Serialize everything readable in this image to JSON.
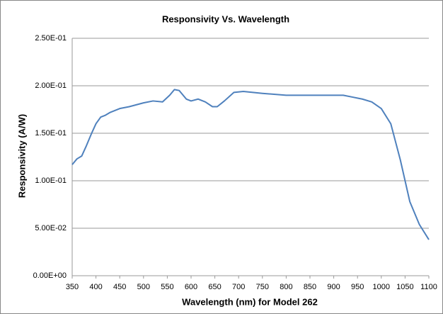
{
  "chart_data": {
    "type": "line",
    "title": "Responsivity Vs. Wavelength",
    "x_label": "Wavelength (nm) for Model 262",
    "y_label": "Responsivity (A/W)",
    "x": [
      350,
      360,
      370,
      380,
      390,
      400,
      410,
      420,
      430,
      450,
      470,
      500,
      520,
      540,
      555,
      565,
      575,
      590,
      600,
      615,
      630,
      645,
      655,
      670,
      690,
      710,
      750,
      800,
      850,
      900,
      920,
      940,
      960,
      980,
      1000,
      1020,
      1040,
      1050,
      1060,
      1080,
      1100
    ],
    "series": [
      {
        "name": "Responsivity",
        "color": "#4f81bd",
        "values": [
          0.117,
          0.123,
          0.126,
          0.137,
          0.149,
          0.16,
          0.167,
          0.169,
          0.172,
          0.176,
          0.178,
          0.182,
          0.184,
          0.183,
          0.19,
          0.196,
          0.195,
          0.186,
          0.184,
          0.186,
          0.183,
          0.178,
          0.178,
          0.184,
          0.193,
          0.194,
          0.192,
          0.19,
          0.19,
          0.19,
          0.19,
          0.188,
          0.186,
          0.183,
          0.176,
          0.16,
          0.122,
          0.1,
          0.078,
          0.054,
          0.038
        ]
      }
    ],
    "xlim": [
      350,
      1100
    ],
    "xticks": [
      350,
      400,
      450,
      500,
      550,
      600,
      650,
      700,
      750,
      800,
      850,
      900,
      950,
      1000,
      1050,
      1100
    ],
    "ylim": [
      0,
      0.25
    ],
    "yticks": [
      {
        "value": 0,
        "label": "0.00E+00"
      },
      {
        "value": 0.05,
        "label": "5.00E-02"
      },
      {
        "value": 0.1,
        "label": "1.00E-01"
      },
      {
        "value": 0.15,
        "label": "1.50E-01"
      },
      {
        "value": 0.2,
        "label": "2.00E-01"
      },
      {
        "value": 0.25,
        "label": "2.50E-01"
      }
    ],
    "grid": true
  }
}
